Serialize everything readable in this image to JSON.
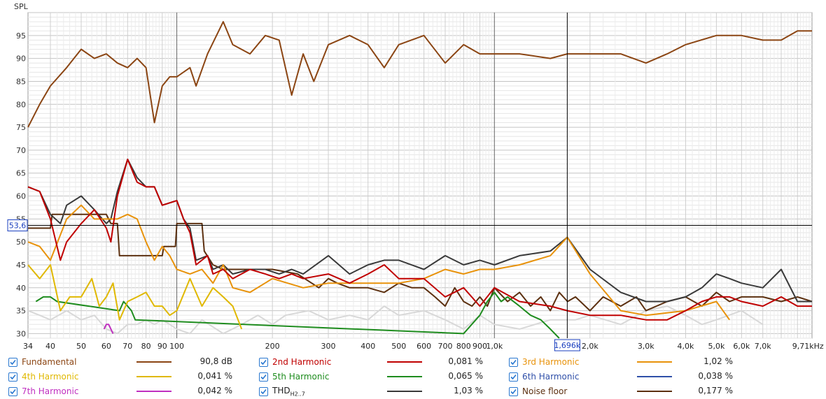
{
  "chart_data": {
    "type": "line",
    "ylabel": "SPL",
    "xscale": "log",
    "xlim": [
      34,
      10000
    ],
    "ylim": [
      29,
      100
    ],
    "x_ticks": [
      {
        "v": 34,
        "label": "34"
      },
      {
        "v": 40,
        "label": "40"
      },
      {
        "v": 50,
        "label": "50"
      },
      {
        "v": 60,
        "label": "60"
      },
      {
        "v": 70,
        "label": "70"
      },
      {
        "v": 80,
        "label": "80"
      },
      {
        "v": 90,
        "label": "90"
      },
      {
        "v": 100,
        "label": "100"
      },
      {
        "v": 200,
        "label": "200"
      },
      {
        "v": 300,
        "label": "300"
      },
      {
        "v": 400,
        "label": "400"
      },
      {
        "v": 500,
        "label": "500"
      },
      {
        "v": 600,
        "label": "600"
      },
      {
        "v": 700,
        "label": "700"
      },
      {
        "v": 800,
        "label": "800"
      },
      {
        "v": 900,
        "label": "900"
      },
      {
        "v": 1000,
        "label": "1,0k"
      },
      {
        "v": 2000,
        "label": "2,0k"
      },
      {
        "v": 3000,
        "label": "3,0k"
      },
      {
        "v": 4000,
        "label": "4,0k"
      },
      {
        "v": 5000,
        "label": "5,0k"
      },
      {
        "v": 6000,
        "label": "6,0k"
      },
      {
        "v": 7000,
        "label": "7,0k"
      },
      {
        "v": 9710,
        "label": "9,71kHz"
      }
    ],
    "y_ticks": [
      {
        "v": 30,
        "label": "30"
      },
      {
        "v": 35,
        "label": "35"
      },
      {
        "v": 40,
        "label": "40"
      },
      {
        "v": 45,
        "label": "45"
      },
      {
        "v": 50,
        "label": "50"
      },
      {
        "v": 55,
        "label": "55"
      },
      {
        "v": 60,
        "label": "60"
      },
      {
        "v": 65,
        "label": "65"
      },
      {
        "v": 70,
        "label": "70"
      },
      {
        "v": 75,
        "label": "75"
      },
      {
        "v": 80,
        "label": "80"
      },
      {
        "v": 85,
        "label": "85"
      },
      {
        "v": 90,
        "label": "90"
      },
      {
        "v": 95,
        "label": "95"
      }
    ],
    "cursor": {
      "x": 1696,
      "x_label": "1,696k",
      "y": 53.6,
      "y_label": "53,6"
    },
    "series": [
      {
        "name": "Fundamental",
        "color": "#8b4513",
        "value": "90,8 dB",
        "x": [
          34,
          37,
          40,
          45,
          50,
          55,
          60,
          65,
          70,
          75,
          80,
          85,
          90,
          95,
          100,
          110,
          115,
          125,
          140,
          150,
          170,
          190,
          210,
          230,
          250,
          270,
          300,
          350,
          400,
          450,
          500,
          600,
          700,
          800,
          900,
          1000,
          1200,
          1500,
          1696,
          2000,
          2500,
          3000,
          3500,
          4000,
          5000,
          6000,
          7000,
          8000,
          9000,
          10000
        ],
        "y": [
          75,
          80,
          84,
          88,
          92,
          90,
          91,
          89,
          88,
          90,
          88,
          76,
          84,
          86,
          86,
          88,
          84,
          91,
          98,
          93,
          91,
          95,
          94,
          82,
          91,
          85,
          93,
          95,
          93,
          88,
          93,
          95,
          89,
          93,
          91,
          91,
          91,
          90,
          91,
          91,
          91,
          89,
          91,
          93,
          95,
          95,
          94,
          94,
          96,
          96
        ]
      },
      {
        "name": "2nd Harmonic",
        "color": "#c00000",
        "value": "0,081 %",
        "x": [
          34,
          37,
          40,
          43,
          45,
          50,
          55,
          60,
          62,
          65,
          70,
          75,
          80,
          85,
          90,
          100,
          105,
          110,
          115,
          125,
          130,
          140,
          150,
          170,
          190,
          210,
          230,
          250,
          300,
          350,
          400,
          450,
          500,
          600,
          700,
          800,
          900,
          1000,
          1200,
          1500,
          1696,
          2000,
          2500,
          3000,
          3500,
          4000,
          4500,
          5000,
          5500,
          6000,
          7000,
          8000,
          9000,
          10000
        ],
        "y": [
          62,
          61,
          55,
          46,
          50,
          54,
          57,
          53,
          50,
          60,
          68,
          63,
          62,
          62,
          58,
          59,
          55,
          52,
          45,
          47,
          43,
          44,
          42,
          44,
          43,
          42,
          43,
          42,
          43,
          41,
          43,
          45,
          42,
          42,
          38,
          40,
          36,
          40,
          37,
          36,
          35,
          34,
          34,
          33,
          33,
          35,
          37,
          38,
          38,
          37,
          36,
          38,
          36,
          36
        ]
      },
      {
        "name": "3rd Harmonic",
        "color": "#e8920a",
        "value": "1,02 %",
        "x": [
          34,
          37,
          40,
          45,
          50,
          55,
          60,
          65,
          70,
          75,
          80,
          85,
          90,
          95,
          100,
          110,
          120,
          130,
          140,
          150,
          170,
          200,
          250,
          300,
          400,
          500,
          600,
          700,
          800,
          900,
          1000,
          1200,
          1500,
          1696,
          2000,
          2500,
          3000,
          4000,
          5000,
          5500
        ],
        "y": [
          50,
          49,
          46,
          55,
          58,
          55,
          55,
          55,
          56,
          55,
          50,
          46,
          49,
          47,
          44,
          43,
          44,
          41,
          45,
          40,
          39,
          42,
          40,
          41,
          41,
          41,
          42,
          44,
          43,
          44,
          44,
          45,
          47,
          51,
          43,
          35,
          34,
          35,
          37,
          33
        ]
      },
      {
        "name": "4th Harmonic",
        "color": "#e0b800",
        "value": "0,041 %",
        "x": [
          34,
          37,
          40,
          43,
          46,
          50,
          54,
          57,
          60,
          63,
          66,
          70,
          75,
          80,
          85,
          90,
          95,
          100,
          110,
          120,
          130,
          140,
          150,
          160
        ],
        "y": [
          45,
          42,
          45,
          35,
          38,
          38,
          42,
          36,
          38,
          41,
          33,
          37,
          38,
          39,
          36,
          36,
          34,
          35,
          42,
          36,
          40,
          38,
          36,
          31
        ]
      },
      {
        "name": "5th Harmonic",
        "color": "#1e8c1e",
        "value": "0,065 %",
        "x": [
          36,
          38,
          40,
          42,
          66,
          68,
          70,
          72,
          74,
          800,
          900,
          950,
          1000,
          1050,
          1100,
          1200,
          1300,
          1400,
          1500,
          1600
        ],
        "y": [
          37,
          38,
          38,
          37,
          35,
          37,
          36,
          35,
          33,
          30,
          34,
          37,
          39,
          37,
          38,
          36,
          34,
          33,
          31,
          29
        ]
      },
      {
        "name": "6th Harmonic",
        "color": "#2f4fa8",
        "value": "0,038 %",
        "x": [],
        "y": []
      },
      {
        "name": "7th Harmonic",
        "color": "#c030c0",
        "value": "0,042 %",
        "x": [
          59,
          60,
          61,
          62,
          63
        ],
        "y": [
          31,
          32,
          32,
          31,
          30
        ]
      },
      {
        "name": "THD",
        "color": "#3a3a3a",
        "value": "1,03 %",
        "x": [
          34,
          37,
          40,
          43,
          45,
          50,
          55,
          60,
          62,
          65,
          70,
          75,
          80,
          85,
          90,
          100,
          105,
          110,
          115,
          125,
          130,
          140,
          150,
          170,
          190,
          210,
          230,
          250,
          300,
          350,
          400,
          450,
          500,
          600,
          700,
          800,
          900,
          1000,
          1200,
          1500,
          1696,
          2000,
          2500,
          3000,
          3500,
          4000,
          4500,
          5000,
          5500,
          6000,
          7000,
          8000,
          9000,
          10000
        ],
        "y": [
          62,
          61,
          56,
          54,
          58,
          60,
          57,
          54,
          55,
          61,
          68,
          64,
          62,
          62,
          58,
          59,
          55,
          53,
          46,
          47,
          44,
          45,
          43,
          44,
          44,
          43,
          44,
          43,
          47,
          43,
          45,
          46,
          46,
          44,
          47,
          45,
          46,
          45,
          47,
          48,
          51,
          44,
          39,
          37,
          37,
          38,
          40,
          43,
          42,
          41,
          40,
          44,
          37,
          37
        ]
      },
      {
        "name": "Noise floor",
        "color": "#5c3010",
        "value": "0,177 %",
        "x": [
          34,
          40,
          40.5,
          60,
          62,
          65,
          66,
          90,
          91,
          99,
          100,
          120,
          122,
          130,
          140,
          160,
          200,
          240,
          280,
          300,
          320,
          350,
          400,
          450,
          500,
          550,
          600,
          650,
          700,
          750,
          800,
          850,
          900,
          950,
          1000,
          1100,
          1200,
          1300,
          1400,
          1500,
          1600,
          1700,
          1800,
          2000,
          2200,
          2500,
          2800,
          3000,
          3500,
          4000,
          4500,
          5000,
          5500,
          6000,
          7000,
          8000,
          9000,
          10000
        ],
        "y": [
          53,
          53,
          56,
          56,
          54,
          54,
          47,
          47,
          49,
          49,
          54,
          54,
          48,
          45,
          44,
          44,
          44,
          43,
          40,
          42,
          41,
          40,
          40,
          39,
          41,
          40,
          40,
          38,
          36,
          40,
          37,
          36,
          38,
          36,
          40,
          37,
          39,
          36,
          38,
          35,
          39,
          37,
          38,
          35,
          38,
          36,
          38,
          35,
          37,
          38,
          36,
          39,
          37,
          38,
          38,
          37,
          38,
          37
        ]
      },
      {
        "name": "",
        "color": "#d8d8d8",
        "x": [
          34,
          37,
          40,
          45,
          50,
          55,
          60,
          65,
          70,
          75,
          80,
          85,
          90,
          95,
          100,
          110,
          120,
          140,
          160,
          180,
          200,
          220,
          260,
          300,
          350,
          400,
          450,
          500,
          600,
          700,
          800,
          900,
          1000,
          1200,
          1500,
          1800,
          2000,
          2500,
          3000,
          3500,
          4000,
          4500,
          5000,
          6000,
          7000
        ],
        "y": [
          35,
          34,
          33,
          35,
          33,
          34,
          31,
          30,
          32,
          32,
          33,
          32,
          33,
          32,
          31,
          30,
          33,
          30,
          32,
          34,
          32,
          34,
          35,
          33,
          34,
          33,
          36,
          34,
          35,
          33,
          31,
          34,
          32,
          31,
          33,
          33,
          34,
          32,
          35,
          36,
          34,
          32,
          33,
          35,
          32
        ]
      }
    ]
  },
  "legend": [
    [
      {
        "name": "Fundamental",
        "value": "90,8 dB",
        "color": "#8b4513",
        "name_color": "#8b4513"
      },
      {
        "name": "2nd Harmonic",
        "value": "0,081 %",
        "color": "#c00000",
        "name_color": "#c00000"
      },
      {
        "name": "3rd Harmonic",
        "value": "1,02 %",
        "color": "#e8920a",
        "name_color": "#e8920a"
      }
    ],
    [
      {
        "name": "4th Harmonic",
        "value": "0,041 %",
        "color": "#e0b800",
        "name_color": "#e0b800"
      },
      {
        "name": "5th Harmonic",
        "value": "0,065 %",
        "color": "#1e8c1e",
        "name_color": "#1e8c1e"
      },
      {
        "name": "6th Harmonic",
        "value": "0,038 %",
        "color": "#2f4fa8",
        "name_color": "#2f4fa8"
      }
    ],
    [
      {
        "name": "7th Harmonic",
        "value": "0,042 %",
        "color": "#c030c0",
        "name_color": "#c030c0"
      },
      {
        "name": "THD",
        "sub": "H2..7",
        "value": "1,03 %",
        "color": "#3a3a3a",
        "name_color": "#222222"
      },
      {
        "name": "Noise floor",
        "value": "0,177 %",
        "color": "#5c3010",
        "name_color": "#5c3010"
      }
    ]
  ]
}
